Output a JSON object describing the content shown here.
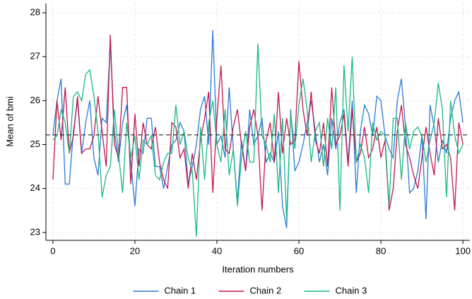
{
  "chart_data": {
    "type": "line",
    "xlabel": "Iteration numbers",
    "ylabel": "Mean of bmi",
    "x": [
      0,
      1,
      2,
      3,
      4,
      5,
      6,
      7,
      8,
      9,
      10,
      11,
      12,
      13,
      14,
      15,
      16,
      17,
      18,
      19,
      20,
      21,
      22,
      23,
      24,
      25,
      26,
      27,
      28,
      29,
      30,
      31,
      32,
      33,
      34,
      35,
      36,
      37,
      38,
      39,
      40,
      41,
      42,
      43,
      44,
      45,
      46,
      47,
      48,
      49,
      50,
      51,
      52,
      53,
      54,
      55,
      56,
      57,
      58,
      59,
      60,
      61,
      62,
      63,
      64,
      65,
      66,
      67,
      68,
      69,
      70,
      71,
      72,
      73,
      74,
      75,
      76,
      77,
      78,
      79,
      80,
      81,
      82,
      83,
      84,
      85,
      86,
      87,
      88,
      89,
      90,
      91,
      92,
      93,
      94,
      95,
      96,
      97,
      98,
      99,
      100
    ],
    "series": [
      {
        "name": "Chain 1",
        "color": "#2b7bd4",
        "values": [
          25.2,
          26.0,
          26.5,
          24.1,
          24.1,
          25.3,
          26.0,
          24.8,
          25.5,
          26.0,
          24.7,
          24.3,
          25.6,
          25.5,
          27.3,
          25.3,
          24.6,
          25.5,
          25.9,
          24.6,
          23.6,
          24.9,
          24.8,
          25.6,
          25.6,
          24.5,
          24.5,
          24.0,
          24.5,
          25.0,
          25.1,
          25.5,
          25.3,
          24.1,
          24.5,
          25.0,
          25.8,
          26.1,
          25.0,
          27.6,
          25.0,
          25.2,
          24.7,
          26.3,
          24.9,
          23.7,
          25.1,
          24.4,
          25.8,
          25.0,
          25.2,
          25.6,
          24.6,
          24.8,
          24.6,
          25.3,
          23.6,
          23.1,
          25.8,
          24.4,
          24.6,
          25.0,
          25.5,
          26.0,
          25.3,
          24.6,
          25.0,
          24.3,
          25.6,
          24.9,
          25.5,
          25.8,
          24.6,
          26.0,
          23.9,
          25.3,
          25.9,
          25.7,
          25.2,
          26.1,
          26.0,
          25.2,
          24.9,
          24.7,
          26.0,
          26.5,
          25.4,
          23.9,
          24.0,
          24.4,
          25.2,
          23.3,
          25.9,
          25.4,
          24.6,
          25.1,
          24.8,
          25.6,
          26.0,
          26.2,
          25.5
        ]
      },
      {
        "name": "Chain 2",
        "color": "#c4174f",
        "values": [
          24.2,
          26.0,
          25.1,
          26.3,
          24.8,
          25.2,
          26.1,
          24.8,
          24.9,
          24.9,
          25.2,
          26.1,
          25.3,
          24.5,
          27.5,
          25.0,
          24.7,
          26.3,
          26.3,
          24.1,
          25.7,
          24.5,
          25.5,
          25.0,
          24.9,
          25.4,
          24.6,
          24.2,
          24.0,
          25.5,
          25.4,
          24.7,
          24.9,
          24.0,
          24.8,
          24.2,
          25.1,
          25.6,
          26.2,
          23.9,
          25.6,
          26.8,
          24.9,
          24.8,
          25.4,
          25.8,
          25.0,
          24.4,
          25.4,
          25.8,
          25.2,
          23.5,
          25.1,
          25.5,
          24.6,
          26.2,
          24.8,
          25.6,
          25.0,
          25.1,
          26.9,
          25.8,
          25.2,
          26.2,
          25.1,
          24.8,
          25.5,
          24.5,
          26.3,
          25.0,
          25.2,
          25.7,
          24.5,
          25.8,
          24.6,
          24.8,
          25.4,
          24.7,
          24.9,
          25.4,
          24.7,
          25.1,
          23.5,
          24.0,
          25.3,
          25.9,
          25.0,
          24.7,
          24.3,
          24.0,
          24.7,
          25.4,
          24.8,
          24.3,
          25.6,
          24.9,
          25.0,
          24.7,
          23.5,
          25.5,
          25.0
        ]
      },
      {
        "name": "Chain 3",
        "color": "#1ab887",
        "values": [
          25.1,
          25.2,
          25.8,
          25.5,
          24.8,
          26.1,
          26.2,
          26.0,
          26.6,
          26.7,
          26.1,
          25.3,
          23.8,
          24.3,
          24.5,
          25.8,
          24.8,
          23.9,
          25.5,
          24.7,
          25.2,
          24.2,
          25.1,
          25.0,
          25.2,
          24.3,
          24.2,
          24.6,
          24.8,
          24.8,
          25.9,
          25.0,
          25.3,
          24.7,
          24.4,
          22.9,
          25.4,
          24.2,
          25.5,
          26.0,
          25.0,
          24.6,
          25.8,
          24.3,
          24.9,
          23.6,
          24.7,
          25.3,
          24.6,
          24.6,
          27.3,
          25.2,
          25.0,
          24.6,
          25.7,
          23.9,
          25.6,
          23.3,
          25.7,
          24.9,
          25.9,
          26.5,
          25.8,
          24.6,
          25.3,
          25.5,
          24.5,
          25.6,
          24.9,
          26.3,
          23.5,
          26.8,
          25.3,
          27.0,
          24.6,
          25.0,
          24.7,
          23.9,
          25.5,
          25.1,
          25.3,
          25.2,
          23.6,
          25.6,
          25.6,
          24.2,
          25.5,
          24.9,
          25.3,
          25.4,
          25.2,
          24.6,
          25.1,
          25.5,
          26.4,
          25.8,
          23.8,
          26.0,
          25.2,
          24.8,
          25.0
        ]
      }
    ],
    "hline": 25.22,
    "xlim": [
      -1.7,
      101.7
    ],
    "xticks": [
      0,
      20,
      40,
      60,
      80,
      100
    ],
    "ylim": [
      22.82,
      28.21
    ],
    "yticks": [
      23,
      24,
      25,
      26,
      27,
      28
    ],
    "grid": true,
    "legend": "bottom"
  }
}
